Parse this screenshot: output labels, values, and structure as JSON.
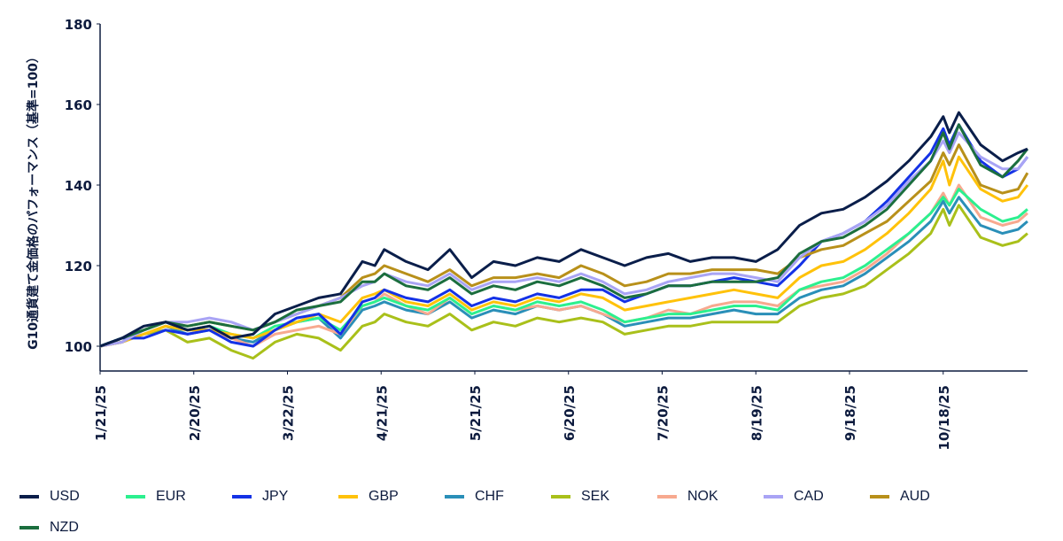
{
  "chart_data": {
    "type": "line",
    "title": "",
    "xlabel": "",
    "ylabel": "G10通貨建て金価格のパフォーマンス（基準=100）",
    "ylim": [
      94,
      180
    ],
    "yticks": [
      100,
      120,
      140,
      160,
      180
    ],
    "xlim_days": [
      0,
      297
    ],
    "start_date": "1/21/25",
    "xtick_labels": [
      "1/21/25",
      "2/20/25",
      "3/22/25",
      "4/21/25",
      "5/21/25",
      "6/20/25",
      "7/20/25",
      "8/19/25",
      "9/18/25",
      "10/18/25"
    ],
    "xtick_days": [
      0,
      30,
      60,
      90,
      120,
      150,
      180,
      210,
      240,
      270
    ],
    "grid": false,
    "legend_position": "bottom",
    "x_days": [
      0,
      7,
      14,
      21,
      28,
      35,
      42,
      49,
      56,
      63,
      70,
      77,
      84,
      88,
      91,
      98,
      105,
      112,
      119,
      126,
      133,
      140,
      147,
      154,
      161,
      168,
      175,
      182,
      189,
      196,
      203,
      210,
      217,
      224,
      231,
      238,
      245,
      252,
      259,
      266,
      270,
      272,
      275,
      282,
      289,
      294,
      297
    ],
    "series": [
      {
        "name": "USD",
        "color": "#0a1e4a",
        "values": [
          100,
          102,
          105,
          106,
          104,
          105,
          102,
          103,
          108,
          110,
          112,
          113,
          121,
          120,
          124,
          121,
          119,
          124,
          117,
          121,
          120,
          122,
          121,
          124,
          122,
          120,
          122,
          123,
          121,
          122,
          122,
          121,
          124,
          130,
          133,
          134,
          137,
          141,
          146,
          152,
          157,
          153,
          158,
          150,
          146,
          148,
          149
        ]
      },
      {
        "name": "EUR",
        "color": "#2cf08f",
        "values": [
          100,
          102,
          104,
          106,
          104,
          105,
          103,
          102,
          105,
          106,
          107,
          104,
          110,
          111,
          112,
          110,
          109,
          112,
          108,
          110,
          109,
          111,
          110,
          111,
          109,
          106,
          107,
          108,
          108,
          109,
          110,
          110,
          109,
          114,
          116,
          117,
          120,
          124,
          128,
          133,
          137,
          135,
          139,
          134,
          131,
          132,
          134
        ]
      },
      {
        "name": "JPY",
        "color": "#1432e6",
        "values": [
          100,
          102,
          102,
          104,
          103,
          104,
          101,
          100,
          104,
          107,
          108,
          103,
          111,
          112,
          114,
          112,
          111,
          114,
          110,
          112,
          111,
          113,
          112,
          114,
          114,
          111,
          113,
          115,
          115,
          116,
          117,
          116,
          115,
          120,
          126,
          128,
          131,
          136,
          142,
          148,
          154,
          150,
          155,
          146,
          142,
          144,
          147
        ]
      },
      {
        "name": "GBP",
        "color": "#ffc20a",
        "values": [
          100,
          101,
          103,
          105,
          104,
          104,
          103,
          102,
          104,
          106,
          108,
          106,
          112,
          113,
          114,
          111,
          110,
          113,
          109,
          111,
          110,
          112,
          111,
          113,
          112,
          109,
          110,
          111,
          112,
          113,
          114,
          113,
          112,
          117,
          120,
          121,
          124,
          128,
          133,
          139,
          146,
          140,
          147,
          139,
          136,
          137,
          140
        ]
      },
      {
        "name": "CHF",
        "color": "#2a8fb8",
        "values": [
          100,
          101,
          103,
          105,
          103,
          104,
          102,
          101,
          104,
          106,
          107,
          102,
          109,
          110,
          111,
          109,
          108,
          111,
          107,
          109,
          108,
          110,
          109,
          110,
          108,
          105,
          106,
          107,
          107,
          108,
          109,
          108,
          108,
          112,
          114,
          115,
          118,
          122,
          126,
          131,
          136,
          133,
          137,
          130,
          128,
          129,
          131
        ]
      },
      {
        "name": "SEK",
        "color": "#a9c01a",
        "values": [
          100,
          101,
          103,
          104,
          101,
          102,
          99,
          97,
          101,
          103,
          102,
          99,
          105,
          106,
          108,
          106,
          105,
          108,
          104,
          106,
          105,
          107,
          106,
          107,
          106,
          103,
          104,
          105,
          105,
          106,
          106,
          106,
          106,
          110,
          112,
          113,
          115,
          119,
          123,
          128,
          134,
          130,
          135,
          127,
          125,
          126,
          128
        ]
      },
      {
        "name": "NOK",
        "color": "#f7a98f",
        "values": [
          100,
          101,
          103,
          105,
          104,
          104,
          102,
          100,
          103,
          104,
          105,
          103,
          110,
          111,
          113,
          110,
          108,
          112,
          108,
          110,
          109,
          110,
          109,
          110,
          108,
          106,
          107,
          109,
          108,
          110,
          111,
          111,
          110,
          114,
          115,
          116,
          119,
          123,
          128,
          133,
          138,
          135,
          140,
          132,
          130,
          131,
          133
        ]
      },
      {
        "name": "CAD",
        "color": "#a9a4f5",
        "values": [
          100,
          101,
          104,
          106,
          106,
          107,
          106,
          104,
          106,
          108,
          110,
          112,
          115,
          116,
          118,
          116,
          115,
          118,
          114,
          116,
          116,
          117,
          116,
          118,
          116,
          113,
          114,
          116,
          117,
          118,
          118,
          117,
          116,
          122,
          126,
          128,
          131,
          135,
          141,
          146,
          151,
          148,
          153,
          147,
          144,
          144,
          147
        ]
      },
      {
        "name": "AUD",
        "color": "#b8901a",
        "values": [
          100,
          101,
          104,
          106,
          105,
          106,
          105,
          104,
          106,
          108,
          110,
          112,
          117,
          118,
          120,
          118,
          116,
          119,
          115,
          117,
          117,
          118,
          117,
          120,
          118,
          115,
          116,
          118,
          118,
          119,
          119,
          119,
          118,
          122,
          124,
          125,
          128,
          131,
          136,
          141,
          148,
          145,
          150,
          140,
          138,
          139,
          143
        ]
      },
      {
        "name": "NZD",
        "color": "#1b6e3e",
        "values": [
          100,
          102,
          104,
          106,
          105,
          106,
          105,
          104,
          106,
          109,
          110,
          111,
          116,
          116,
          118,
          115,
          114,
          117,
          113,
          115,
          114,
          116,
          115,
          117,
          115,
          112,
          113,
          115,
          115,
          116,
          116,
          116,
          117,
          123,
          126,
          127,
          130,
          134,
          140,
          146,
          153,
          149,
          155,
          145,
          142,
          146,
          149
        ]
      }
    ]
  }
}
